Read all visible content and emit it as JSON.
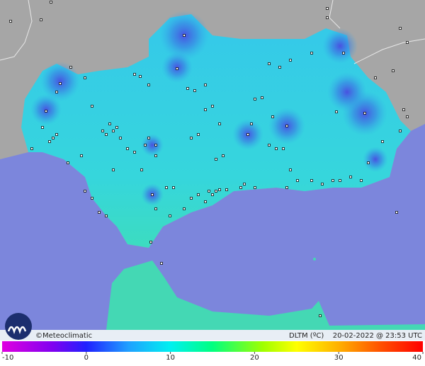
{
  "footer": {
    "credit": "©Meteoclimatic",
    "variable": "DLTM (ºC)",
    "timestamp": "20-02-2022 @ 23:53 UTC"
  },
  "colorbar": {
    "ticks": [
      -10,
      0,
      10,
      20,
      30,
      40
    ]
  }
}
